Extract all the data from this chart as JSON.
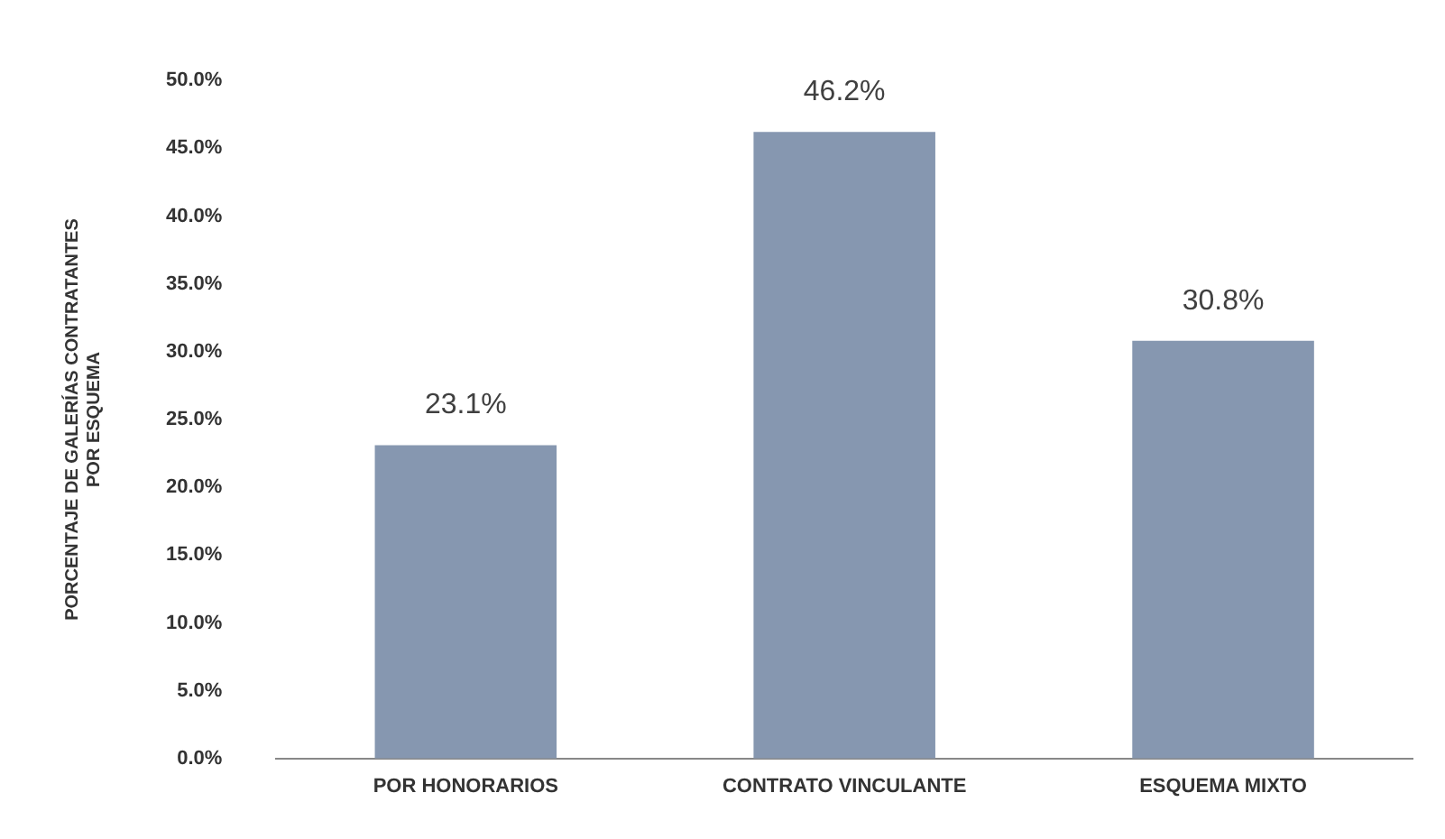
{
  "chart_data": {
    "type": "bar",
    "ylabel": "PORCENTAJE DE GALERÍAS CONTRATANTES\nPOR ESQUEMA",
    "categories": [
      "POR HONORARIOS",
      "CONTRATO VINCULANTE",
      "ESQUEMA MIXTO"
    ],
    "values": [
      23.1,
      46.2,
      30.8
    ],
    "value_labels": [
      "23.1%",
      "46.2%",
      "30.8%"
    ],
    "color": "#8697b0",
    "ylim": [
      0,
      50
    ],
    "yticks": [
      {
        "value": 0,
        "label": "0.0%"
      },
      {
        "value": 5,
        "label": "5.0%"
      },
      {
        "value": 10,
        "label": "10.0%"
      },
      {
        "value": 15,
        "label": "15.0%"
      },
      {
        "value": 20,
        "label": "20.0%"
      },
      {
        "value": 25,
        "label": "25.0%"
      },
      {
        "value": 30,
        "label": "30.0%"
      },
      {
        "value": 35,
        "label": "35.0%"
      },
      {
        "value": 40,
        "label": "40.0%"
      },
      {
        "value": 45,
        "label": "45.0%"
      },
      {
        "value": 50,
        "label": "50.0%"
      }
    ],
    "grid": false,
    "legend": false
  }
}
